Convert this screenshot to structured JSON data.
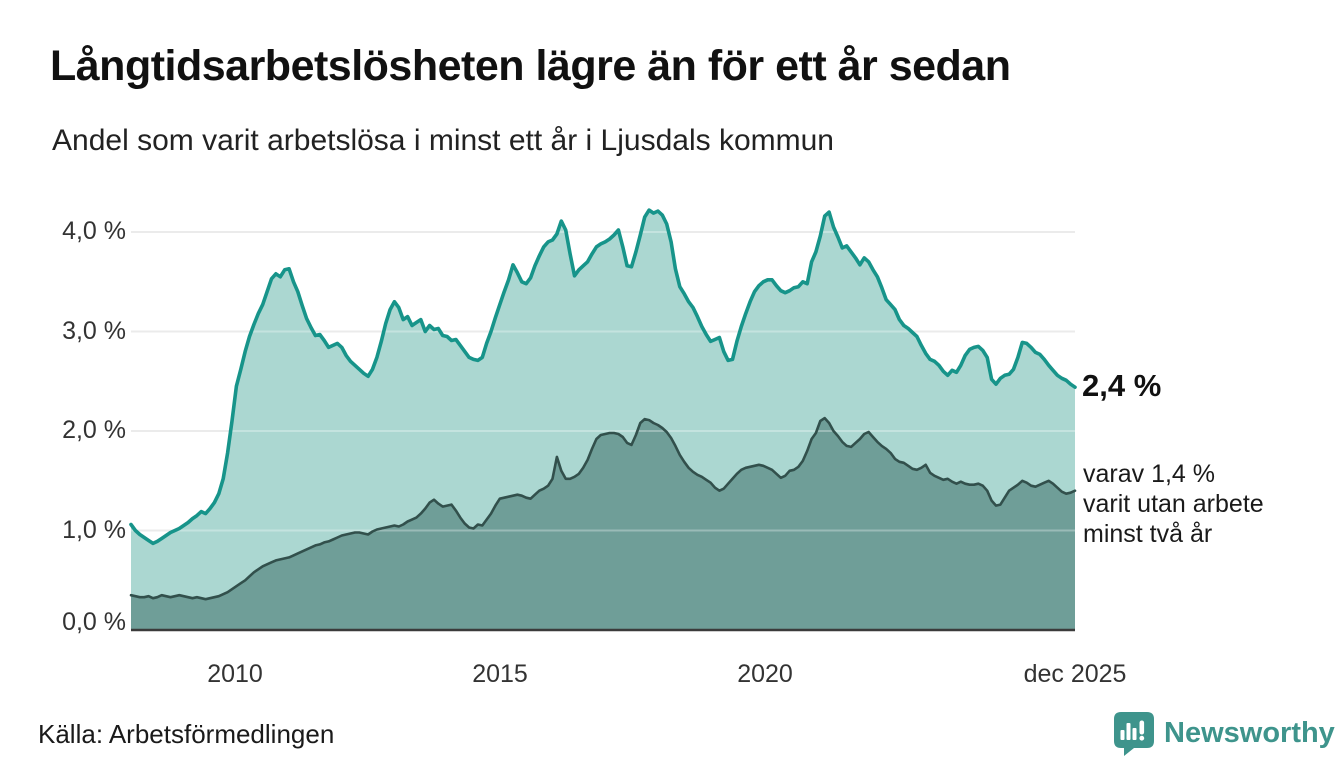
{
  "title": "Långtidsarbetslösheten lägre än för ett år sedan",
  "subtitle": "Andel som varit arbetslösa i minst ett år i Ljusdals kommun",
  "source": "Källa: Arbetsförmedlingen",
  "branding": {
    "name": "Newsworthy",
    "icon": "newsworthy-logo-icon",
    "color": "#3e948c"
  },
  "annotations": {
    "latest_total": "2,4 %",
    "latest_secondary": [
      "varav 1,4 %",
      "varit utan arbete",
      "minst två år"
    ]
  },
  "axes": {
    "y_ticks": [
      "4,0 %",
      "3,0 %",
      "2,0 %",
      "1,0 %",
      "0,0 %"
    ],
    "x_ticks": [
      "2010",
      "2015",
      "2020",
      "dec 2025"
    ]
  },
  "colors": {
    "teal_line": "#17948a",
    "light_fill": "#abd7d1",
    "dark_fill": "#6f9e98",
    "dark_line": "#32504c",
    "grid": "#e3e3e3",
    "grid_overlay": "rgba(255,255,255,0.30)",
    "axis": "#3b3b3b",
    "brand": "#3e948c"
  },
  "chart_data": {
    "type": "area",
    "title": "Långtidsarbetslösheten lägre än för ett år sedan",
    "subtitle": "Andel som varit arbetslösa i minst ett år i Ljusdals kommun",
    "unit": "%",
    "x_start": "2008-01",
    "x_end": "2025-12",
    "frequency": "monthly",
    "ylim": [
      0,
      4.3
    ],
    "y_gridlines": [
      1.0,
      2.0,
      3.0,
      4.0
    ],
    "x_tick_positions": [
      "2010-01",
      "2015-01",
      "2020-01",
      "2025-12"
    ],
    "legend_position": "right-edge-annotations",
    "series": [
      {
        "name": "Andel som varit arbetslösa i minst ett år",
        "end_label": "2,4 %",
        "values": [
          1.06,
          1.0,
          0.96,
          0.93,
          0.9,
          0.87,
          0.89,
          0.92,
          0.95,
          0.98,
          1.0,
          1.02,
          1.05,
          1.08,
          1.12,
          1.15,
          1.19,
          1.17,
          1.22,
          1.28,
          1.37,
          1.52,
          1.78,
          2.1,
          2.45,
          2.62,
          2.8,
          2.95,
          3.07,
          3.18,
          3.27,
          3.4,
          3.53,
          3.58,
          3.55,
          3.62,
          3.63,
          3.5,
          3.4,
          3.26,
          3.13,
          3.04,
          2.96,
          2.97,
          2.91,
          2.84,
          2.86,
          2.88,
          2.84,
          2.76,
          2.7,
          2.66,
          2.62,
          2.58,
          2.55,
          2.62,
          2.74,
          2.9,
          3.08,
          3.22,
          3.3,
          3.24,
          3.12,
          3.15,
          3.06,
          3.09,
          3.12,
          3.0,
          3.06,
          3.02,
          3.03,
          2.96,
          2.95,
          2.91,
          2.92,
          2.86,
          2.8,
          2.74,
          2.72,
          2.71,
          2.74,
          2.88,
          3.0,
          3.14,
          3.27,
          3.4,
          3.52,
          3.67,
          3.59,
          3.5,
          3.48,
          3.54,
          3.66,
          3.76,
          3.85,
          3.9,
          3.92,
          3.98,
          4.11,
          4.02,
          3.78,
          3.56,
          3.62,
          3.66,
          3.7,
          3.78,
          3.85,
          3.88,
          3.9,
          3.93,
          3.97,
          4.02,
          3.85,
          3.66,
          3.65,
          3.8,
          3.97,
          4.15,
          4.22,
          4.19,
          4.21,
          4.17,
          4.08,
          3.9,
          3.63,
          3.45,
          3.38,
          3.3,
          3.24,
          3.15,
          3.05,
          2.97,
          2.9,
          2.92,
          2.94,
          2.8,
          2.71,
          2.72,
          2.9,
          3.05,
          3.18,
          3.3,
          3.4,
          3.46,
          3.5,
          3.52,
          3.52,
          3.46,
          3.41,
          3.39,
          3.41,
          3.44,
          3.45,
          3.5,
          3.48,
          3.7,
          3.8,
          3.96,
          4.16,
          4.2,
          4.05,
          3.95,
          3.84,
          3.86,
          3.8,
          3.74,
          3.67,
          3.74,
          3.7,
          3.62,
          3.55,
          3.44,
          3.32,
          3.27,
          3.22,
          3.12,
          3.06,
          3.03,
          2.99,
          2.95,
          2.86,
          2.78,
          2.72,
          2.7,
          2.66,
          2.6,
          2.56,
          2.61,
          2.59,
          2.66,
          2.76,
          2.82,
          2.84,
          2.85,
          2.81,
          2.74,
          2.52,
          2.47,
          2.53,
          2.56,
          2.57,
          2.62,
          2.74,
          2.89,
          2.88,
          2.84,
          2.79,
          2.77,
          2.72,
          2.66,
          2.61,
          2.56,
          2.53,
          2.51,
          2.47,
          2.44
        ]
      },
      {
        "name": "varav utan arbete minst två år",
        "end_label": "varav 1,4 % varit utan arbete minst två år",
        "values": [
          0.35,
          0.34,
          0.33,
          0.33,
          0.34,
          0.32,
          0.33,
          0.35,
          0.34,
          0.33,
          0.34,
          0.35,
          0.34,
          0.33,
          0.32,
          0.33,
          0.32,
          0.31,
          0.32,
          0.33,
          0.34,
          0.36,
          0.38,
          0.41,
          0.44,
          0.47,
          0.5,
          0.54,
          0.58,
          0.61,
          0.64,
          0.66,
          0.68,
          0.7,
          0.71,
          0.72,
          0.73,
          0.75,
          0.77,
          0.79,
          0.81,
          0.83,
          0.85,
          0.86,
          0.88,
          0.89,
          0.91,
          0.93,
          0.95,
          0.96,
          0.97,
          0.98,
          0.98,
          0.97,
          0.96,
          0.99,
          1.01,
          1.02,
          1.03,
          1.04,
          1.05,
          1.04,
          1.06,
          1.09,
          1.11,
          1.13,
          1.17,
          1.22,
          1.28,
          1.31,
          1.27,
          1.24,
          1.25,
          1.26,
          1.2,
          1.13,
          1.07,
          1.03,
          1.02,
          1.06,
          1.05,
          1.11,
          1.17,
          1.25,
          1.32,
          1.33,
          1.34,
          1.35,
          1.36,
          1.35,
          1.33,
          1.32,
          1.36,
          1.4,
          1.42,
          1.45,
          1.52,
          1.74,
          1.6,
          1.52,
          1.52,
          1.54,
          1.57,
          1.63,
          1.71,
          1.82,
          1.92,
          1.96,
          1.97,
          1.98,
          1.98,
          1.97,
          1.94,
          1.88,
          1.86,
          1.96,
          2.08,
          2.12,
          2.11,
          2.08,
          2.06,
          2.03,
          1.99,
          1.93,
          1.85,
          1.76,
          1.69,
          1.63,
          1.59,
          1.56,
          1.54,
          1.51,
          1.48,
          1.43,
          1.4,
          1.42,
          1.47,
          1.52,
          1.57,
          1.61,
          1.63,
          1.64,
          1.65,
          1.66,
          1.65,
          1.63,
          1.61,
          1.57,
          1.53,
          1.55,
          1.6,
          1.61,
          1.64,
          1.7,
          1.8,
          1.92,
          1.98,
          2.1,
          2.13,
          2.08,
          2.0,
          1.95,
          1.89,
          1.85,
          1.84,
          1.88,
          1.92,
          1.97,
          1.99,
          1.94,
          1.89,
          1.85,
          1.82,
          1.78,
          1.72,
          1.69,
          1.68,
          1.65,
          1.62,
          1.61,
          1.63,
          1.66,
          1.58,
          1.55,
          1.53,
          1.51,
          1.52,
          1.49,
          1.47,
          1.49,
          1.47,
          1.46,
          1.46,
          1.47,
          1.45,
          1.4,
          1.3,
          1.25,
          1.26,
          1.33,
          1.4,
          1.43,
          1.46,
          1.5,
          1.48,
          1.45,
          1.44,
          1.46,
          1.48,
          1.5,
          1.47,
          1.43,
          1.39,
          1.37,
          1.38,
          1.4
        ]
      }
    ]
  }
}
